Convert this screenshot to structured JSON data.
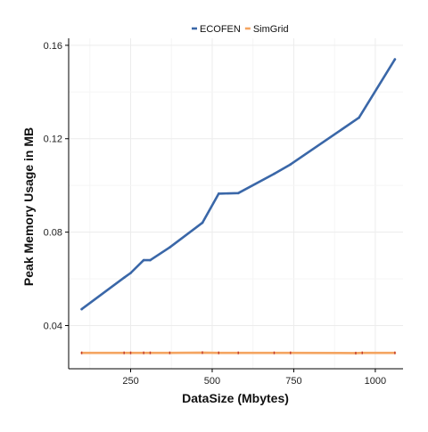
{
  "chart_data": {
    "type": "line",
    "title": "",
    "xlabel": "DataSize (Mbytes)",
    "ylabel": "Peak Memory Usage in MB",
    "xlim": [
      60,
      1085
    ],
    "ylim": [
      0.0215,
      0.163
    ],
    "x_ticks": [
      250,
      500,
      750,
      1000
    ],
    "x_tick_labels": [
      "250",
      "500",
      "750",
      "1000"
    ],
    "y_ticks": [
      0.04,
      0.08,
      0.12,
      0.16
    ],
    "y_tick_labels": [
      "0.04",
      "0.08",
      "0.12",
      "0.16"
    ],
    "grid": true,
    "legend_position": "top",
    "series": [
      {
        "name": "ECOFEN",
        "color": "#3a67a8",
        "x": [
          100,
          230,
          250,
          290,
          310,
          370,
          470,
          520,
          580,
          690,
          740,
          950,
          1060
        ],
        "y": [
          0.047,
          0.0605,
          0.0625,
          0.068,
          0.068,
          0.0735,
          0.084,
          0.0965,
          0.0967,
          0.105,
          0.109,
          0.129,
          0.154
        ]
      },
      {
        "name": "SimGrid",
        "color": "#f4a460",
        "marker_color": "#c0392b",
        "x": [
          100,
          230,
          250,
          290,
          310,
          370,
          470,
          520,
          580,
          690,
          740,
          940,
          960,
          1060
        ],
        "y": [
          0.0283,
          0.0283,
          0.0283,
          0.0283,
          0.0283,
          0.0283,
          0.0284,
          0.0283,
          0.0283,
          0.0283,
          0.0283,
          0.0282,
          0.0283,
          0.0283
        ]
      }
    ]
  }
}
